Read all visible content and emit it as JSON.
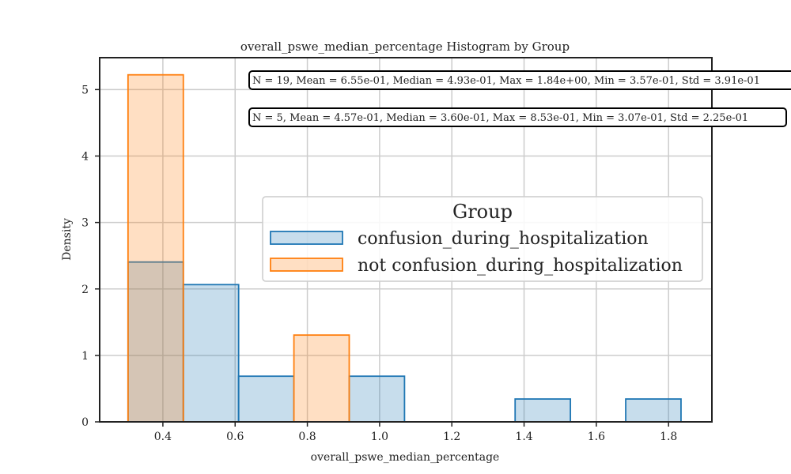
{
  "chart_data": {
    "type": "histogram",
    "title": "overall_pswe_median_percentage Histogram by Group",
    "xlabel": "overall_pswe_median_percentage",
    "ylabel": "Density",
    "xlim": [
      0.225,
      1.92
    ],
    "ylim": [
      0,
      5.48
    ],
    "xticks": [
      0.4,
      0.6,
      0.8,
      1.0,
      1.2,
      1.4,
      1.6,
      1.8
    ],
    "xtick_labels": [
      "0.4",
      "0.6",
      "0.8",
      "1.0",
      "1.2",
      "1.4",
      "1.6",
      "1.8"
    ],
    "yticks": [
      0,
      1,
      2,
      3,
      4,
      5
    ],
    "ytick_labels": [
      "0",
      "1",
      "2",
      "3",
      "4",
      "5"
    ],
    "grid": true,
    "legend": {
      "title": "Group",
      "placement": "center-right"
    },
    "series": [
      {
        "name": "confusion_during_hospitalization",
        "edge_color": "#1f77b4",
        "fill_color": "#1f77b4",
        "bins": [
          {
            "x0": 0.3035,
            "x1": 0.4566,
            "density": 2.405
          },
          {
            "x0": 0.4566,
            "x1": 0.6097,
            "density": 2.065
          },
          {
            "x0": 0.6097,
            "x1": 0.7628,
            "density": 0.687
          },
          {
            "x0": 0.7628,
            "x1": 0.9159,
            "density": 0.0
          },
          {
            "x0": 0.9159,
            "x1": 1.069,
            "density": 0.687
          },
          {
            "x0": 1.069,
            "x1": 1.2221,
            "density": 0.0
          },
          {
            "x0": 1.2221,
            "x1": 1.3752,
            "density": 0.0
          },
          {
            "x0": 1.3752,
            "x1": 1.5283,
            "density": 0.344
          },
          {
            "x0": 1.5283,
            "x1": 1.6814,
            "density": 0.0
          },
          {
            "x0": 1.6814,
            "x1": 1.8345,
            "density": 0.344
          }
        ]
      },
      {
        "name": "not confusion_during_hospitalization",
        "edge_color": "#ff7f0e",
        "fill_color": "#ff7f0e",
        "bins": [
          {
            "x0": 0.3035,
            "x1": 0.4566,
            "density": 5.222
          },
          {
            "x0": 0.4566,
            "x1": 0.6097,
            "density": 0.0
          },
          {
            "x0": 0.6097,
            "x1": 0.7628,
            "density": 0.0
          },
          {
            "x0": 0.7628,
            "x1": 0.9159,
            "density": 1.306
          }
        ]
      }
    ],
    "annotations": [
      "N = 19, Mean = 6.55e-01, Median = 4.93e-01, Max = 1.84e+00, Min = 3.57e-01, Std = 3.91e-01",
      "N = 5, Mean = 4.57e-01, Median = 3.60e-01, Max = 8.53e-01, Min = 3.07e-01, Std = 2.25e-01"
    ]
  }
}
